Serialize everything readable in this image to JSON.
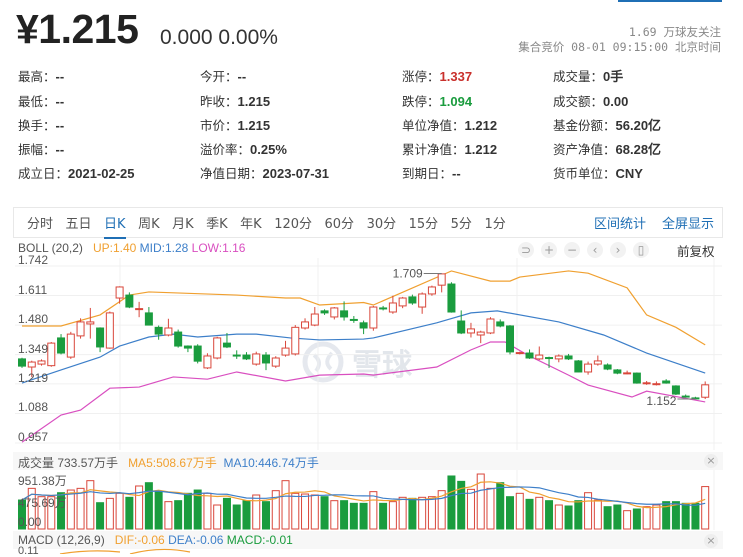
{
  "quote": {
    "price": "¥1.215",
    "change": "0.000 0.00%",
    "followers": "1.69 万球友关注",
    "status": "集合竞价 08-01 09:15:00 北京时间"
  },
  "info": [
    [
      {
        "label": "最高：",
        "value": "--"
      },
      {
        "label": "今开：",
        "value": "--"
      },
      {
        "label": "涨停：",
        "value": "1.337",
        "color": "red"
      },
      {
        "label": "成交量：",
        "value": "0手"
      }
    ],
    [
      {
        "label": "最低：",
        "value": "--"
      },
      {
        "label": "昨收：",
        "value": "1.215"
      },
      {
        "label": "跌停：",
        "value": "1.094",
        "color": "green"
      },
      {
        "label": "成交额：",
        "value": "0.00"
      }
    ],
    [
      {
        "label": "换手：",
        "value": "--"
      },
      {
        "label": "市价：",
        "value": "1.215"
      },
      {
        "label": "单位净值：",
        "value": "1.212"
      },
      {
        "label": "基金份额：",
        "value": "56.20亿"
      }
    ],
    [
      {
        "label": "振幅：",
        "value": "--"
      },
      {
        "label": "溢价率：",
        "value": "0.25%"
      },
      {
        "label": "累计净值：",
        "value": "1.212"
      },
      {
        "label": "资产净值：",
        "value": "68.28亿"
      }
    ],
    [
      {
        "label": "成立日：",
        "value": "2021-02-25"
      },
      {
        "label": "净值日期：",
        "value": "2023-07-31"
      },
      {
        "label": "到期日：",
        "value": "--"
      },
      {
        "label": "货币单位：",
        "value": "CNY"
      }
    ]
  ],
  "tabs": {
    "items": [
      "分时",
      "五日",
      "日K",
      "周K",
      "月K",
      "季K",
      "年K",
      "120分",
      "60分",
      "30分",
      "15分",
      "5分",
      "1分"
    ],
    "active": "日K",
    "range_stats": "区间统计",
    "fullscreen": "全屏显示"
  },
  "controls": {
    "icons": [
      "undo-icon",
      "zoom-in-icon",
      "zoom-out-icon",
      "left-icon",
      "right-icon",
      "candle-style-icon"
    ],
    "glyphs": [
      "⊃",
      "+",
      "−",
      "‹",
      "›",
      "▯"
    ],
    "adjust": "前复权"
  },
  "boll": {
    "name": "BOLL (20,2)",
    "up": "UP:1.40",
    "mid": "MID:1.28",
    "low": "LOW:1.16"
  },
  "volume": {
    "name": "成交量 733.57万手",
    "ma5": "MA5:508.67万手",
    "ma10": "MA10:446.74万手",
    "ticks": [
      "951.38万",
      "475.69万",
      "0.00"
    ]
  },
  "macd": {
    "name": "MACD (12,26,9)",
    "dif": "DIF:-0.06",
    "dea": "DEA:-0.06",
    "macd": "MACD:-0.01",
    "tick": "0.11"
  },
  "watermark": "雪球",
  "colors": {
    "up": "#d9463a",
    "down": "#1a9c3e",
    "boll_up": "#f0a030",
    "boll_mid": "#3d7fc9",
    "boll_low": "#d94fc0",
    "accent": "#1f6fb5"
  },
  "chart_data": {
    "type": "candlestick",
    "y_ticks": [
      "1.742",
      "1.611",
      "1.480",
      "1.349",
      "1.219",
      "1.088",
      "0.957"
    ],
    "ylim": [
      0.957,
      1.742
    ],
    "max_label": "1.709",
    "min_label": "1.152",
    "candles_ohlc": [
      [
        1.33,
        1.335,
        1.29,
        1.298
      ],
      [
        1.294,
        1.322,
        1.25,
        1.316
      ],
      [
        1.307,
        1.328,
        1.3,
        1.321
      ],
      [
        1.3,
        1.405,
        1.295,
        1.4
      ],
      [
        1.423,
        1.44,
        1.35,
        1.356
      ],
      [
        1.338,
        1.45,
        1.33,
        1.44
      ],
      [
        1.432,
        1.51,
        1.42,
        1.494
      ],
      [
        1.485,
        1.556,
        1.42,
        1.494
      ],
      [
        1.467,
        1.47,
        1.36,
        1.383
      ],
      [
        1.378,
        1.54,
        1.375,
        1.534
      ],
      [
        1.6,
        1.652,
        1.575,
        1.649
      ],
      [
        1.613,
        1.625,
        1.555,
        1.56
      ],
      [
        1.551,
        1.583,
        1.515,
        1.553
      ],
      [
        1.534,
        1.56,
        1.478,
        1.48
      ],
      [
        1.47,
        1.478,
        1.415,
        1.44
      ],
      [
        1.436,
        1.508,
        1.43,
        1.467
      ],
      [
        1.449,
        1.46,
        1.38,
        1.387
      ],
      [
        1.387,
        1.39,
        1.36,
        1.378
      ],
      [
        1.387,
        1.395,
        1.31,
        1.32
      ],
      [
        1.29,
        1.355,
        1.285,
        1.343
      ],
      [
        1.334,
        1.428,
        1.328,
        1.423
      ],
      [
        1.4,
        1.445,
        1.378,
        1.383
      ],
      [
        1.347,
        1.368,
        1.33,
        1.345
      ],
      [
        1.347,
        1.36,
        1.325,
        1.33
      ],
      [
        1.307,
        1.362,
        1.3,
        1.352
      ],
      [
        1.347,
        1.36,
        1.28,
        1.312
      ],
      [
        1.298,
        1.342,
        1.29,
        1.334
      ],
      [
        1.347,
        1.41,
        1.34,
        1.378
      ],
      [
        1.352,
        1.48,
        1.345,
        1.47
      ],
      [
        1.467,
        1.51,
        1.46,
        1.494
      ],
      [
        1.48,
        1.56,
        1.475,
        1.529
      ],
      [
        1.543,
        1.55,
        1.525,
        1.534
      ],
      [
        1.516,
        1.56,
        1.505,
        1.556
      ],
      [
        1.543,
        1.585,
        1.5,
        1.516
      ],
      [
        1.505,
        1.52,
        1.49,
        1.503
      ],
      [
        1.49,
        1.5,
        1.44,
        1.467
      ],
      [
        1.467,
        1.565,
        1.455,
        1.56
      ],
      [
        1.556,
        1.565,
        1.545,
        1.554
      ],
      [
        1.538,
        1.61,
        1.53,
        1.578
      ],
      [
        1.565,
        1.605,
        1.555,
        1.6
      ],
      [
        1.605,
        1.615,
        1.57,
        1.578
      ],
      [
        1.56,
        1.625,
        1.53,
        1.618
      ],
      [
        1.618,
        1.655,
        1.61,
        1.649
      ],
      [
        1.657,
        1.709,
        1.625,
        1.707
      ],
      [
        1.662,
        1.67,
        1.535,
        1.538
      ],
      [
        1.498,
        1.545,
        1.44,
        1.445
      ],
      [
        1.445,
        1.49,
        1.425,
        1.463
      ],
      [
        1.436,
        1.455,
        1.4,
        1.449
      ],
      [
        1.445,
        1.515,
        1.44,
        1.507
      ],
      [
        1.494,
        1.505,
        1.47,
        1.476
      ],
      [
        1.476,
        1.48,
        1.35,
        1.361
      ],
      [
        1.356,
        1.362,
        1.35,
        1.358
      ],
      [
        1.356,
        1.372,
        1.33,
        1.334
      ],
      [
        1.33,
        1.385,
        1.325,
        1.347
      ],
      [
        1.336,
        1.34,
        1.29,
        1.334
      ],
      [
        1.33,
        1.35,
        1.315,
        1.343
      ],
      [
        1.343,
        1.352,
        1.325,
        1.33
      ],
      [
        1.321,
        1.325,
        1.27,
        1.272
      ],
      [
        1.272,
        1.318,
        1.26,
        1.307
      ],
      [
        1.307,
        1.345,
        1.3,
        1.321
      ],
      [
        1.303,
        1.31,
        1.28,
        1.285
      ],
      [
        1.281,
        1.285,
        1.262,
        1.267
      ],
      [
        1.266,
        1.278,
        1.262,
        1.268
      ],
      [
        1.267,
        1.27,
        1.22,
        1.223
      ],
      [
        1.222,
        1.232,
        1.215,
        1.224
      ],
      [
        1.218,
        1.23,
        1.212,
        1.22
      ],
      [
        1.232,
        1.24,
        1.22,
        1.223
      ],
      [
        1.21,
        1.213,
        1.17,
        1.174
      ],
      [
        1.165,
        1.172,
        1.158,
        1.163
      ],
      [
        1.157,
        1.162,
        1.152,
        1.156
      ],
      [
        1.16,
        1.23,
        1.152,
        1.215
      ]
    ],
    "boll_up": [
      [
        0,
        1.476
      ],
      [
        4,
        1.476
      ],
      [
        8,
        1.525
      ],
      [
        11,
        1.613
      ],
      [
        13,
        1.627
      ],
      [
        22,
        1.613
      ],
      [
        27,
        1.6
      ],
      [
        28.5,
        1.6
      ],
      [
        30.5,
        1.569
      ],
      [
        35,
        1.58
      ],
      [
        36,
        1.569
      ],
      [
        44,
        1.72
      ],
      [
        48,
        1.675
      ],
      [
        50,
        1.675
      ],
      [
        51,
        1.693
      ],
      [
        56,
        1.72
      ],
      [
        58,
        1.71
      ],
      [
        62,
        1.645
      ],
      [
        64,
        1.525
      ],
      [
        67,
        1.47
      ],
      [
        70,
        1.392
      ]
    ],
    "boll_mid": [
      [
        0,
        1.223
      ],
      [
        4,
        1.281
      ],
      [
        8,
        1.338
      ],
      [
        10,
        1.387
      ],
      [
        13,
        1.427
      ],
      [
        15.5,
        1.44
      ],
      [
        18,
        1.427
      ],
      [
        22,
        1.44
      ],
      [
        24,
        1.44
      ],
      [
        27.5,
        1.423
      ],
      [
        30.5,
        1.414
      ],
      [
        35,
        1.418
      ],
      [
        36,
        1.423
      ],
      [
        42.5,
        1.49
      ],
      [
        46,
        1.534
      ],
      [
        48.7,
        1.543
      ],
      [
        55,
        1.494
      ],
      [
        59.6,
        1.436
      ],
      [
        64,
        1.356
      ],
      [
        70,
        1.267
      ]
    ],
    "boll_low": [
      [
        0,
        0.961
      ],
      [
        4,
        1.081
      ],
      [
        6,
        1.103
      ],
      [
        9,
        1.2
      ],
      [
        12,
        1.205
      ],
      [
        15.5,
        1.25
      ],
      [
        19,
        1.24
      ],
      [
        22,
        1.272
      ],
      [
        27,
        1.232
      ],
      [
        30.5,
        1.258
      ],
      [
        35,
        1.263
      ],
      [
        36,
        1.258
      ],
      [
        42.5,
        1.294
      ],
      [
        46,
        1.37
      ],
      [
        48,
        1.405
      ],
      [
        49.5,
        1.405
      ],
      [
        51.8,
        1.347
      ],
      [
        56,
        1.258
      ],
      [
        58,
        1.214
      ],
      [
        62.5,
        1.161
      ],
      [
        64,
        1.187
      ],
      [
        70,
        1.139
      ]
    ],
    "volume_wan": [
      501,
      703,
      559,
      559,
      628,
      674,
      703,
      836,
      455,
      530,
      617,
      548,
      744,
      801,
      646,
      473,
      490,
      617,
      674,
      617,
      415,
      530,
      415,
      490,
      588,
      473,
      663,
      836,
      617,
      605,
      588,
      559,
      490,
      490,
      444,
      444,
      646,
      444,
      473,
      548,
      530,
      548,
      559,
      663,
      917,
      824,
      686,
      951,
      703,
      801,
      559,
      617,
      513,
      548,
      490,
      415,
      398,
      490,
      628,
      501,
      386,
      415,
      317,
      346,
      386,
      415,
      473,
      473,
      444,
      444,
      733.57
    ],
    "volume_max": 951.38
  }
}
